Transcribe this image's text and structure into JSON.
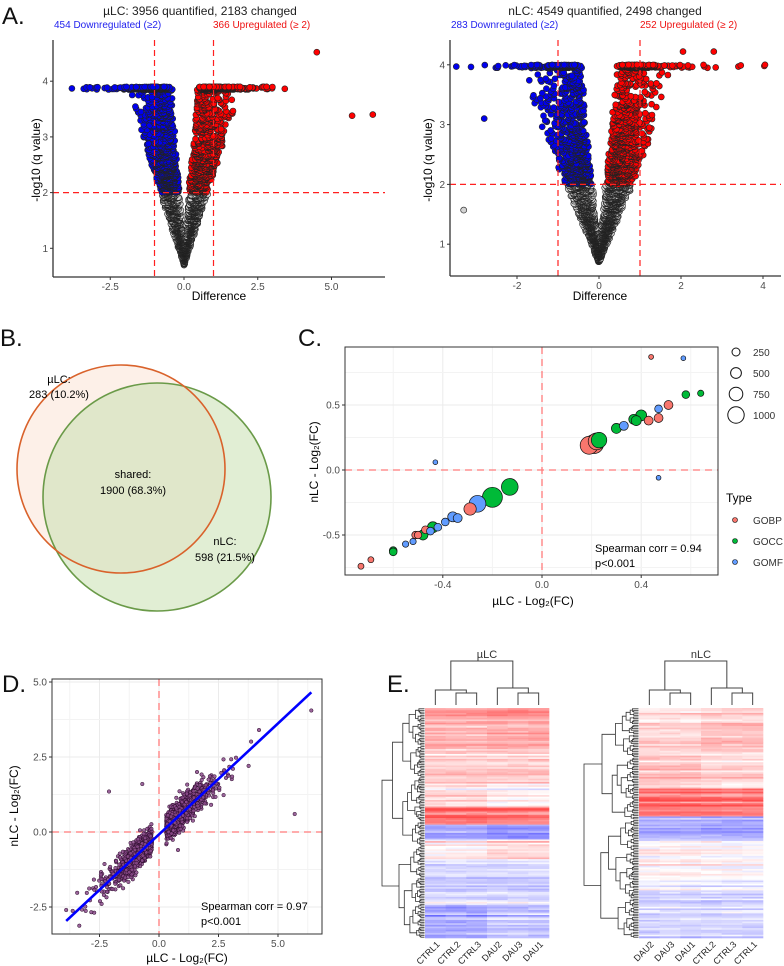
{
  "panel_labels": {
    "a": "A.",
    "b": "B.",
    "c": "C.",
    "d": "D.",
    "e": "E."
  },
  "colors": {
    "down": "#0000ee",
    "up": "#ff0000",
    "ns": "#d3d3d3",
    "threshold": "#ff2020",
    "gobp": "#F8766D",
    "gocc": "#00BA38",
    "gomf": "#619CFF",
    "venn_ulc": "#d9622b",
    "venn_nlc": "#6a9a48",
    "regression": "#0000ff",
    "scatter_d": "#8a4a8a"
  },
  "chart_data": [
    {
      "id": "volcano_ulc",
      "type": "scatter",
      "title": "µLC: 3956 quantified, 2183 changed",
      "subtitle_down": "454 Downregulated (≥2)",
      "subtitle_up": "366 Upregulated (≥ 2)",
      "xlabel": "Difference",
      "ylabel": "-log10 (q value)",
      "xticks": [
        "-2.5",
        "0.0",
        "2.5",
        "5.0"
      ],
      "xtick_values": [
        -2.5,
        0,
        2.5,
        5
      ],
      "yticks": [
        "1",
        "2",
        "3",
        "4"
      ],
      "ytick_values": [
        1,
        2,
        3,
        4
      ],
      "xlim": [
        -4.5,
        6.9
      ],
      "ylim": [
        0.5,
        4.7
      ],
      "thresholds": {
        "x": [
          -1,
          1
        ],
        "y": 2
      },
      "n_points": 3956,
      "max_y": 3.9,
      "x_spread": 0.9,
      "seed": 11,
      "outliers": [
        [
          4.5,
          4.52
        ],
        [
          6.4,
          3.4
        ],
        [
          5.7,
          3.38
        ],
        [
          -3.8,
          3.87
        ],
        [
          2.8,
          3.9
        ]
      ]
    },
    {
      "id": "volcano_nlc",
      "type": "scatter",
      "title": "nLC: 4549 quantified, 2498 changed",
      "subtitle_down": "283 Downregulated (≥2)",
      "subtitle_up": "252 Upregulated (≥ 2)",
      "xlabel": "Difference",
      "ylabel": "-log10 (q value)",
      "xticks": [
        "-2",
        "0",
        "2",
        "4"
      ],
      "xtick_values": [
        -2,
        0,
        2,
        4
      ],
      "yticks": [
        "1",
        "2",
        "3",
        "4"
      ],
      "ytick_values": [
        1,
        2,
        3,
        4
      ],
      "xlim": [
        -3.6,
        4.4
      ],
      "ylim": [
        0.5,
        4.3
      ],
      "thresholds": {
        "x": [
          -1,
          1
        ],
        "y": 2
      },
      "n_points": 4549,
      "max_y": 4.0,
      "x_spread": 0.7,
      "seed": 29,
      "outliers": [
        [
          4.05,
          4.0
        ],
        [
          3.4,
          3.97
        ],
        [
          -2.8,
          3.1
        ],
        [
          -3.3,
          1.57
        ],
        [
          2.05,
          4.22
        ],
        [
          2.8,
          4.22
        ]
      ]
    },
    {
      "id": "venn",
      "type": "venn",
      "sets": [
        {
          "name": "µLC:",
          "value": "283 (10.2%)"
        },
        {
          "name": "nLC:",
          "value": "598 (21.5%)"
        }
      ],
      "overlap": {
        "name": "shared:",
        "value": "1900 (68.3%)"
      }
    },
    {
      "id": "go_scatter",
      "type": "scatter",
      "xlabel": "µLC - Log₂(FC)",
      "ylabel": "nLC - Log₂(FC)",
      "xticks": [
        "-0.4",
        "0.0",
        "0.4"
      ],
      "xtick_values": [
        -0.4,
        0,
        0.4
      ],
      "yticks": [
        "-0.5",
        "0.0",
        "0.5"
      ],
      "ytick_values": [
        -0.5,
        0,
        0.5
      ],
      "xlim": [
        -0.79,
        0.71
      ],
      "ylim": [
        -0.81,
        0.95
      ],
      "annotation": [
        "Spearman corr = 0.94",
        "p<0.001"
      ],
      "size_legend": {
        "values": [
          250,
          500,
          750,
          1000
        ],
        "labels": [
          "250",
          "500",
          "750",
          "1000"
        ]
      },
      "type_legend": {
        "title": "Type",
        "labels": [
          "GOBP",
          "GOCC",
          "GOMF"
        ]
      },
      "points": [
        {
          "t": "GOBP",
          "x": -0.73,
          "y": -0.74,
          "n": 90
        },
        {
          "t": "GOBP",
          "x": -0.69,
          "y": -0.69,
          "n": 90
        },
        {
          "t": "GOBP",
          "x": -0.51,
          "y": -0.5,
          "n": 140
        },
        {
          "t": "GOBP",
          "x": -0.5,
          "y": -0.5,
          "n": 140
        },
        {
          "t": "GOBP",
          "x": -0.47,
          "y": -0.46,
          "n": 150
        },
        {
          "t": "GOBP",
          "x": -0.29,
          "y": -0.3,
          "n": 380
        },
        {
          "t": "GOBP",
          "x": 0.19,
          "y": 0.19,
          "n": 800
        },
        {
          "t": "GOBP",
          "x": 0.22,
          "y": 0.22,
          "n": 700
        },
        {
          "t": "GOBP",
          "x": 0.43,
          "y": 0.38,
          "n": 200
        },
        {
          "t": "GOBP",
          "x": 0.47,
          "y": 0.4,
          "n": 200
        },
        {
          "t": "GOBP",
          "x": 0.51,
          "y": 0.5,
          "n": 200
        },
        {
          "t": "GOBP",
          "x": 0.44,
          "y": 0.87,
          "n": 60
        },
        {
          "t": "GOCC",
          "x": -0.6,
          "y": -0.62,
          "n": 150
        },
        {
          "t": "GOCC",
          "x": -0.6,
          "y": -0.63,
          "n": 150
        },
        {
          "t": "GOCC",
          "x": -0.48,
          "y": -0.5,
          "n": 250
        },
        {
          "t": "GOCC",
          "x": -0.44,
          "y": -0.44,
          "n": 300
        },
        {
          "t": "GOCC",
          "x": -0.2,
          "y": -0.21,
          "n": 1000
        },
        {
          "t": "GOCC",
          "x": -0.13,
          "y": -0.13,
          "n": 700
        },
        {
          "t": "GOCC",
          "x": 0.23,
          "y": 0.23,
          "n": 600
        },
        {
          "t": "GOCC",
          "x": 0.3,
          "y": 0.32,
          "n": 250
        },
        {
          "t": "GOCC",
          "x": 0.37,
          "y": 0.39,
          "n": 250
        },
        {
          "t": "GOCC",
          "x": 0.38,
          "y": 0.38,
          "n": 250
        },
        {
          "t": "GOCC",
          "x": 0.4,
          "y": 0.42,
          "n": 300
        },
        {
          "t": "GOCC",
          "x": 0.58,
          "y": 0.58,
          "n": 150
        },
        {
          "t": "GOCC",
          "x": 0.64,
          "y": 0.59,
          "n": 100
        },
        {
          "t": "GOBP",
          "x": 0.21,
          "y": 0.2,
          "n": 900
        },
        {
          "t": "GOMF",
          "x": -0.55,
          "y": -0.57,
          "n": 100
        },
        {
          "t": "GOMF",
          "x": -0.52,
          "y": -0.55,
          "n": 100
        },
        {
          "t": "GOMF",
          "x": -0.45,
          "y": -0.47,
          "n": 150
        },
        {
          "t": "GOMF",
          "x": -0.42,
          "y": -0.44,
          "n": 150
        },
        {
          "t": "GOMF",
          "x": -0.39,
          "y": -0.4,
          "n": 150
        },
        {
          "t": "GOMF",
          "x": -0.36,
          "y": -0.36,
          "n": 250
        },
        {
          "t": "GOMF",
          "x": -0.34,
          "y": -0.37,
          "n": 200
        },
        {
          "t": "GOMF",
          "x": -0.26,
          "y": -0.26,
          "n": 700
        },
        {
          "t": "GOMF",
          "x": 0.33,
          "y": 0.34,
          "n": 200
        },
        {
          "t": "GOMF",
          "x": 0.47,
          "y": 0.47,
          "n": 150
        },
        {
          "t": "GOMF",
          "x": -0.43,
          "y": 0.06,
          "n": 50
        },
        {
          "t": "GOMF",
          "x": 0.57,
          "y": 0.86,
          "n": 50
        },
        {
          "t": "GOMF",
          "x": 0.47,
          "y": -0.06,
          "n": 40
        }
      ]
    },
    {
      "id": "fc_correlation",
      "type": "scatter",
      "xlabel": "µLC - Log₂(FC)",
      "ylabel": "nLC - Log₂(FC)",
      "xticks": [
        "-2.5",
        "0.0",
        "2.5",
        "5.0"
      ],
      "xtick_values": [
        -2.5,
        0,
        2.5,
        5
      ],
      "yticks": [
        "-2.5",
        "0.0",
        "2.5",
        "5.0"
      ],
      "ytick_values": [
        -2.5,
        0,
        2.5,
        5
      ],
      "xlim": [
        -4.5,
        6.9
      ],
      "ylim": [
        -3.4,
        5.1
      ],
      "annotation": [
        "Spearman corr = 0.97",
        "p<0.001"
      ],
      "regression": {
        "slope": 0.74,
        "intercept": -0.08,
        "x_range": [
          -3.9,
          6.4
        ]
      },
      "n_points": 1900,
      "seed": 7,
      "outliers": [
        [
          -2.1,
          1.35
        ],
        [
          -0.7,
          1.6
        ],
        [
          5.7,
          0.6
        ],
        [
          6.4,
          4.05
        ],
        [
          4.2,
          3.4
        ],
        [
          -3.9,
          -2.6
        ],
        [
          0.8,
          -0.6
        ]
      ]
    },
    {
      "id": "heatmap_ulc",
      "type": "heatmap",
      "title": "µLC",
      "columns": [
        "CTRL1",
        "CTRL2",
        "CTRL3",
        "DAU2",
        "DAU3",
        "DAU1"
      ],
      "n_rows": 140,
      "seed": 3,
      "row_blocks": [
        [
          0.0,
          0.17,
          0.45,
          0.5
        ],
        [
          0.17,
          0.33,
          0.3,
          0.3
        ],
        [
          0.33,
          0.43,
          0.2,
          0.05
        ],
        [
          0.43,
          0.51,
          0.75,
          0.7
        ],
        [
          0.51,
          0.57,
          -0.55,
          -0.65
        ],
        [
          0.57,
          0.66,
          0.05,
          0.2
        ],
        [
          0.66,
          0.86,
          -0.2,
          -0.2
        ],
        [
          0.86,
          1.0,
          -0.5,
          -0.35
        ]
      ]
    },
    {
      "id": "heatmap_nlc",
      "type": "heatmap",
      "title": "nLC",
      "columns": [
        "DAU2",
        "DAU3",
        "DAU1",
        "CTRL2",
        "CTRL3",
        "CTRL1"
      ],
      "n_rows": 140,
      "seed": 5,
      "row_blocks": [
        [
          0.0,
          0.19,
          0.3,
          0.2
        ],
        [
          0.19,
          0.35,
          0.25,
          0.35
        ],
        [
          0.35,
          0.47,
          0.7,
          0.75
        ],
        [
          0.47,
          0.58,
          -0.5,
          -0.45
        ],
        [
          0.58,
          0.79,
          0.0,
          0.05
        ],
        [
          0.79,
          1.0,
          -0.25,
          -0.25
        ]
      ]
    }
  ]
}
